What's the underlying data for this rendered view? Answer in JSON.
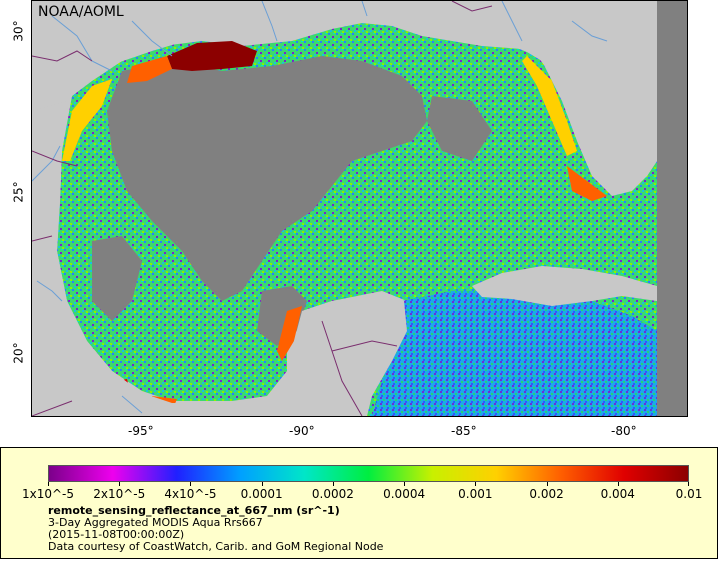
{
  "map": {
    "credit_label": "NOAA/AOML",
    "lon_ticks": [
      "-95°",
      "-90°",
      "-85°",
      "-80°"
    ],
    "lat_ticks": [
      "30°",
      "25°",
      "20°"
    ],
    "colors": {
      "land": "#c8c8c8",
      "no_data": "#808080",
      "rivers": "#6a9fd6",
      "borders": "#7a2e6e"
    }
  },
  "legend": {
    "colorbar_labels": [
      "1x10^-5",
      "2x10^-5",
      "4x10^-5",
      "0.0001",
      "0.0002",
      "0.0004",
      "0.001",
      "0.002",
      "0.004",
      "0.01"
    ],
    "colorbar_colors": [
      "#7b008a",
      "#ee00ee",
      "#2020ff",
      "#00a0ff",
      "#00e6c8",
      "#00ee40",
      "#c8f000",
      "#ffd000",
      "#ff6000",
      "#e00000",
      "#8c0000"
    ],
    "variable_name": "remote_sensing_reflectance_at_667_nm (sr^-1)",
    "line1": "3-Day Aggregated MODIS Aqua Rrs667",
    "line2": "(2015-11-08T00:00:00Z)",
    "line3": "Data courtesy of CoastWatch, Carib. and GoM Regional Node"
  }
}
